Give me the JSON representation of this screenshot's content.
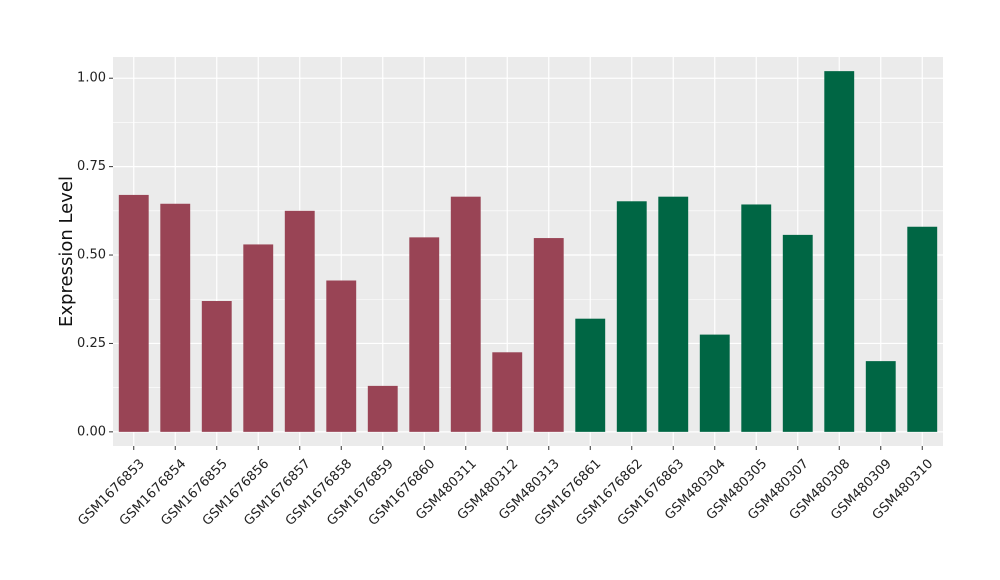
{
  "chart_data": {
    "type": "bar",
    "title": "",
    "xlabel": "",
    "ylabel": "Expression Level",
    "ylim": [
      -0.04,
      1.06
    ],
    "yticks": [
      0.0,
      0.25,
      0.5,
      0.75,
      1.0
    ],
    "ytick_labels": [
      "0.00",
      "0.25",
      "0.50",
      "0.75",
      "1.00"
    ],
    "grid": true,
    "legend": "none",
    "categories": [
      "GSM1676853",
      "GSM1676854",
      "GSM1676855",
      "GSM1676856",
      "GSM1676857",
      "GSM1676858",
      "GSM1676859",
      "GSM1676860",
      "GSM480311",
      "GSM480312",
      "GSM480313",
      "GSM1676861",
      "GSM1676862",
      "GSM1676863",
      "GSM480304",
      "GSM480305",
      "GSM480307",
      "GSM480308",
      "GSM480309",
      "GSM480310"
    ],
    "values": [
      0.67,
      0.645,
      0.37,
      0.53,
      0.625,
      0.428,
      0.13,
      0.55,
      0.665,
      0.225,
      0.548,
      0.32,
      0.652,
      0.665,
      0.275,
      0.643,
      0.557,
      1.02,
      0.2,
      0.58
    ],
    "groups": [
      0,
      0,
      0,
      0,
      0,
      0,
      0,
      0,
      0,
      0,
      0,
      1,
      1,
      1,
      1,
      1,
      1,
      1,
      1,
      1
    ],
    "group_colors": [
      "#994455",
      "#006644"
    ],
    "panel_color": "#ebebeb",
    "grid_color": "#ffffff"
  }
}
